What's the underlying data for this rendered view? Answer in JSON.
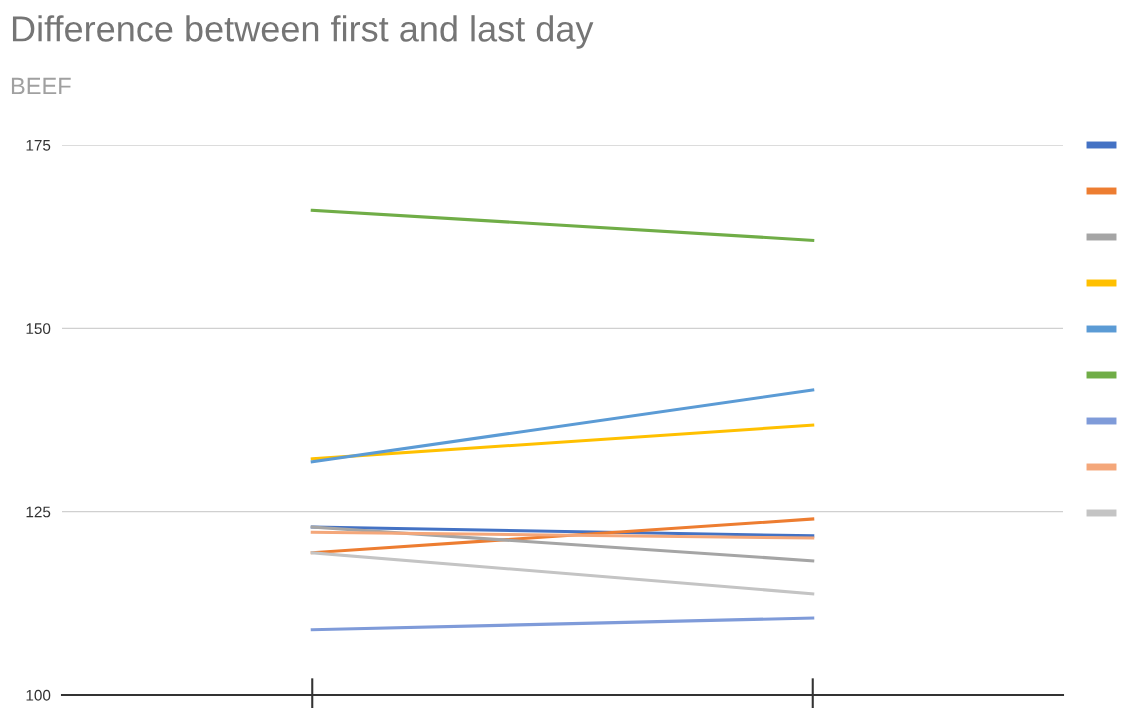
{
  "chart_data": {
    "type": "line",
    "title": "Difference between first and last day",
    "subtitle": "BEEF",
    "categories": [
      null,
      null
    ],
    "series": [
      {
        "color": "#4472c4",
        "values": [
          122.9,
          121.7
        ]
      },
      {
        "color": "#ed7d31",
        "values": [
          119.4,
          124.0
        ]
      },
      {
        "color": "#a5a5a5",
        "values": [
          122.9,
          118.3
        ]
      },
      {
        "color": "#ffc000",
        "values": [
          132.2,
          136.8
        ]
      },
      {
        "color": "#5b9bd5",
        "values": [
          131.8,
          141.6
        ]
      },
      {
        "color": "#70ad47",
        "values": [
          166.1,
          162.0
        ]
      },
      {
        "color": "#7f9bd9",
        "values": [
          108.9,
          110.5
        ]
      },
      {
        "color": "#f4a77a",
        "values": [
          122.2,
          121.4
        ]
      },
      {
        "color": "#c4c4c4",
        "values": [
          119.4,
          113.8
        ]
      }
    ],
    "ylim": [
      100,
      175
    ],
    "yticks": [
      100,
      125,
      150,
      175
    ],
    "grid": "y",
    "marker": "none",
    "line_style": "solid"
  }
}
